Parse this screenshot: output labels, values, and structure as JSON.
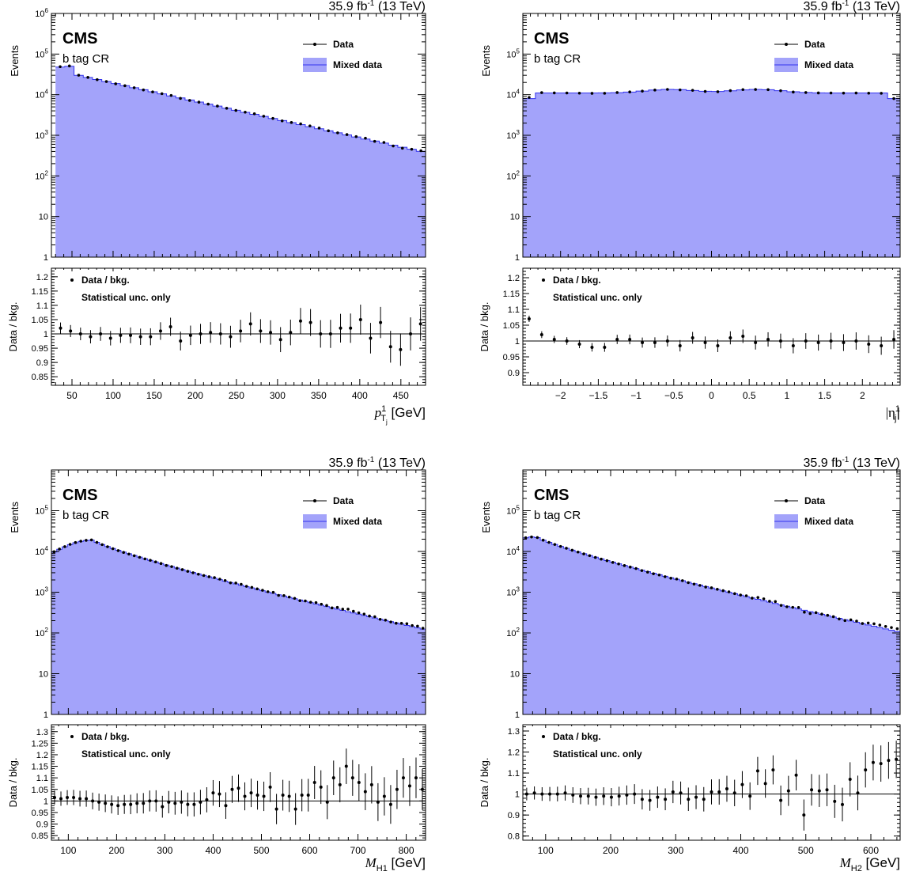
{
  "colors": {
    "fill": "#a3a3fa",
    "stroke": "#3333ee",
    "axis": "#000000"
  },
  "chart_data": [
    {
      "type": "histogram-with-ratio",
      "lumi": "35.9 fb-1 (13 TeV)",
      "lumi_parts": {
        "pre": "35.9 fb",
        "sup": "-1",
        "post": " (13 TeV)"
      },
      "cms": "CMS",
      "region": "b tag CR",
      "legend": [
        "Data",
        "Mixed data"
      ],
      "ratio_legend": [
        "Data / bkg.",
        "Statistical unc. only"
      ],
      "ylabel": "Events",
      "ratio_ylabel": "Data / bkg.",
      "xlabel": {
        "var": "p",
        "sup": "1",
        "sub": "T",
        "subsub": "j",
        "unit": " [GeV]"
      },
      "xlim": [
        25,
        480
      ],
      "ylim_log": [
        1,
        1000000
      ],
      "log_y": true,
      "yticks": [
        1,
        10,
        100,
        1000,
        10000,
        100000,
        1000000
      ],
      "xticks": [
        50,
        100,
        150,
        200,
        250,
        300,
        350,
        400,
        450
      ],
      "ratio_ylim": [
        0.82,
        1.23
      ],
      "ratio_yticks": [
        0.85,
        0.9,
        0.95,
        1,
        1.05,
        1.1,
        1.15,
        1.2
      ],
      "shape": {
        "type": "exp",
        "x0": 30,
        "x1": 480,
        "y0": 40000,
        "y1": 380,
        "bins": 40,
        "peak": [
          [
            30,
            36000
          ],
          [
            35,
            48000
          ],
          [
            40,
            55000
          ],
          [
            45,
            50000
          ],
          [
            50,
            40000
          ]
        ]
      },
      "ratio_points": [
        1.02,
        1.01,
        1.0,
        0.99,
        1.0,
        0.985,
        0.995,
        0.995,
        0.99,
        0.99,
        1.01,
        1.025,
        0.975,
        0.995,
        1.0,
        1.005,
        1.0,
        0.99,
        1.01,
        1.035,
        1.01,
        1.005,
        0.98,
        1.005,
        1.045,
        1.04,
        1.0,
        1.0,
        1.02,
        1.02,
        1.05,
        0.985,
        1.04,
        0.955,
        0.945,
        1.0,
        1.035
      ],
      "ratio_err": 0.02
    },
    {
      "type": "histogram-with-ratio",
      "lumi": "35.9 fb-1 (13 TeV)",
      "lumi_parts": {
        "pre": "35.9 fb",
        "sup": "-1",
        "post": " (13 TeV)"
      },
      "cms": "CMS",
      "region": "b tag CR",
      "legend": [
        "Data",
        "Mixed data"
      ],
      "ratio_legend": [
        "Data / bkg.",
        "Statistical unc. only"
      ],
      "ylabel": "Events",
      "ratio_ylabel": "Data / bkg.",
      "xlabel": {
        "var": "|η",
        "sup": "1",
        "sub": "j",
        "unit": "|"
      },
      "xlim": [
        -2.5,
        2.5
      ],
      "ylim_log": [
        1,
        1000000
      ],
      "log_y": true,
      "yticks": [
        1,
        10,
        100,
        1000,
        10000,
        100000
      ],
      "xticks": [
        -2,
        -1.5,
        -1,
        -0.5,
        0,
        0.5,
        1,
        1.5,
        2
      ],
      "ratio_ylim": [
        0.86,
        1.23
      ],
      "ratio_yticks": [
        0.9,
        0.95,
        1,
        1.05,
        1.1,
        1.15,
        1.2
      ],
      "shape": {
        "type": "flat",
        "bins": 30,
        "base": 11000,
        "bumps": [
          [
            -0.55,
            13500
          ],
          [
            0.6,
            13500
          ]
        ],
        "edge": 8000
      },
      "ratio_points": [
        1.07,
        1.02,
        1.005,
        1.0,
        0.99,
        0.98,
        0.98,
        1.005,
        1.005,
        0.995,
        0.995,
        1.0,
        0.985,
        1.01,
        0.995,
        0.985,
        1.01,
        1.015,
        0.995,
        1.005,
        1.0,
        0.985,
        1.0,
        0.995,
        1.0,
        0.995,
        1.0,
        0.99,
        0.985,
        1.005
      ],
      "ratio_err": 0.01
    },
    {
      "type": "histogram-with-ratio",
      "lumi": "35.9 fb-1 (13 TeV)",
      "lumi_parts": {
        "pre": "35.9 fb",
        "sup": "-1",
        "post": " (13 TeV)"
      },
      "cms": "CMS",
      "region": "b tag CR",
      "legend": [
        "Data",
        "Mixed data"
      ],
      "ratio_legend": [
        "Data / bkg.",
        "Statistical unc. only"
      ],
      "ylabel": "Events",
      "ratio_ylabel": "Data / bkg.",
      "xlabel": {
        "var": "M",
        "sub": "H1",
        "unit": " [GeV]"
      },
      "xlim": [
        65,
        840
      ],
      "ylim_log": [
        1,
        1000000
      ],
      "log_y": true,
      "yticks": [
        1,
        10,
        100,
        1000,
        10000,
        100000
      ],
      "xticks": [
        100,
        200,
        300,
        400,
        500,
        600,
        700,
        800
      ],
      "ratio_ylim": [
        0.83,
        1.33
      ],
      "ratio_yticks": [
        0.85,
        0.9,
        0.95,
        1,
        1.05,
        1.1,
        1.15,
        1.2,
        1.25,
        1.3
      ],
      "shape": {
        "type": "rise-fall",
        "x0": 65,
        "x1": 840,
        "peakx": 150,
        "peaky": 19000,
        "starty": 9000,
        "endy": 120,
        "bins": 70
      },
      "ratio_points": [
        1.015,
        1.01,
        1.015,
        1.015,
        1.01,
        1.01,
        1.0,
        0.995,
        0.99,
        0.985,
        0.98,
        0.985,
        0.985,
        0.99,
        0.99,
        1.0,
        1.0,
        0.975,
        0.995,
        0.99,
        0.995,
        0.985,
        0.985,
        0.995,
        1.005,
        1.035,
        1.03,
        0.98,
        1.05,
        1.055,
        1.02,
        1.035,
        1.025,
        1.02,
        1.06,
        0.965,
        1.025,
        1.02,
        0.965,
        1.025,
        1.025,
        1.08,
        1.06,
        0.995,
        1.1,
        1.07,
        1.15,
        1.1,
        1.08,
        1.04,
        1.07,
        0.995,
        1.02,
        0.985,
        1.05,
        1.1,
        1.065,
        1.1,
        1.05
      ],
      "ratio_err": 0.03
    },
    {
      "type": "histogram-with-ratio",
      "lumi": "35.9 fb-1 (13 TeV)",
      "lumi_parts": {
        "pre": "35.9 fb",
        "sup": "-1",
        "post": " (13 TeV)"
      },
      "cms": "CMS",
      "region": "b tag CR",
      "legend": [
        "Data",
        "Mixed data"
      ],
      "ratio_legend": [
        "Data / bkg.",
        "Statistical unc. only"
      ],
      "ylabel": "Events",
      "ratio_ylabel": "Data / bkg.",
      "xlabel": {
        "var": "M",
        "sub": "H2",
        "unit": " [GeV]"
      },
      "xlim": [
        65,
        645
      ],
      "ylim_log": [
        1,
        1000000
      ],
      "log_y": true,
      "yticks": [
        1,
        10,
        100,
        1000,
        10000,
        100000
      ],
      "xticks": [
        100,
        200,
        300,
        400,
        500,
        600
      ],
      "ratio_ylim": [
        0.78,
        1.33
      ],
      "ratio_yticks": [
        0.8,
        0.9,
        1,
        1.1,
        1.2,
        1.3
      ],
      "shape": {
        "type": "rise-fall",
        "x0": 65,
        "x1": 645,
        "peakx": 85,
        "peaky": 23000,
        "starty": 21000,
        "endy": 105,
        "bins": 65
      },
      "ratio_points": [
        1.0,
        1.005,
        1.0,
        1.0,
        1.0,
        1.005,
        0.995,
        0.99,
        0.99,
        0.985,
        0.99,
        0.985,
        0.99,
        0.995,
        1.0,
        0.975,
        0.97,
        0.985,
        0.975,
        1.01,
        1.005,
        0.975,
        0.985,
        0.975,
        1.01,
        1.01,
        1.025,
        1.005,
        1.045,
        0.99,
        1.11,
        1.05,
        1.115,
        0.97,
        1.015,
        1.09,
        0.9,
        1.02,
        1.015,
        1.02,
        0.965,
        0.95,
        1.07,
        1.005,
        1.115,
        1.15,
        1.145,
        1.16,
        1.165
      ],
      "ratio_err": 0.03
    }
  ]
}
